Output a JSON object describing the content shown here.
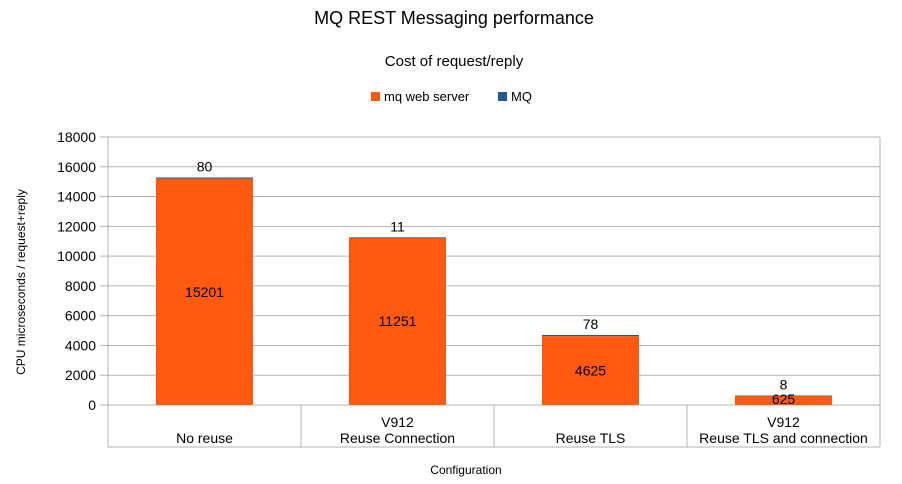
{
  "chart_data": {
    "type": "bar",
    "stacked": true,
    "title": "MQ REST Messaging performance",
    "subtitle": "Cost of request/reply",
    "xlabel": "Configuration",
    "ylabel": "CPU microseconds / request+reply",
    "ylim": [
      0,
      18000
    ],
    "yticks": [
      0,
      2000,
      4000,
      6000,
      8000,
      10000,
      12000,
      14000,
      16000,
      18000
    ],
    "grid": true,
    "legend_position": "top",
    "categories": [
      [
        "No reuse"
      ],
      [
        "V912",
        "Reuse Connection"
      ],
      [
        "Reuse TLS"
      ],
      [
        "V912",
        "Reuse TLS and connection"
      ]
    ],
    "series": [
      {
        "name": "mq web server",
        "color": "#ff5a0f",
        "values": [
          15201,
          11251,
          4625,
          625
        ]
      },
      {
        "name": "MQ",
        "color": "#1f5a96",
        "values": [
          80,
          11,
          78,
          8
        ]
      }
    ]
  }
}
